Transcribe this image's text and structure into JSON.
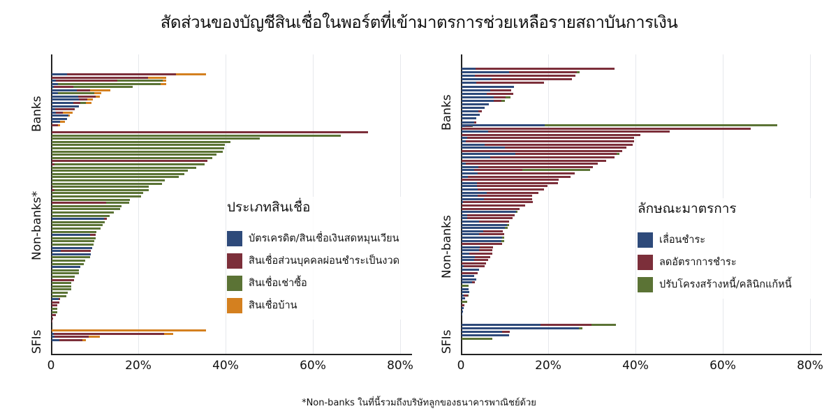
{
  "title": "สัดส่วนของบัญชีสินเชื่อในพอร์ตที่เข้ามาตรการช่วยเหลือรายสถาบันการเงิน",
  "footnote": "*Non-banks ในที่นี้รวมถึงบริษัทลูกของธนาคารพาณิชย์ด้วย",
  "colors": {
    "blue": "#2e4a7a",
    "red": "#7c2f3a",
    "green": "#5b7335",
    "orange": "#d4801f"
  },
  "chart_data": [
    {
      "type": "bar",
      "orientation": "horizontal-stacked",
      "title": "ประเภทสินเชื่อ",
      "legend": {
        "title": "ประเภทสินเชื่อ",
        "position": "inside-right",
        "entries": [
          {
            "label": "บัตรเครดิต/สินเชื่อเงินสดหมุนเวียน",
            "color": "#2e4a7a"
          },
          {
            "label": "สินเชื่อส่วนบุคคลผ่อนชำระเป็นงวด",
            "color": "#7c2f3a"
          },
          {
            "label": "สินเชื่อเช่าซื้อ",
            "color": "#5b7335"
          },
          {
            "label": "สินเชื่อบ้าน",
            "color": "#d4801f"
          }
        ]
      },
      "xlabel": "",
      "ylabel": "",
      "xlim": [
        0,
        82
      ],
      "xticks": [
        "0",
        "20%",
        "40%",
        "60%",
        "80%"
      ],
      "xtick_values": [
        0,
        20,
        40,
        60,
        80
      ],
      "grid": true,
      "groups": [
        {
          "label": "Banks",
          "bars": [
            [
              3.5,
              25,
              0,
              6.8
            ],
            [
              0,
              22,
              0,
              4.2
            ],
            [
              1,
              14,
              10.5,
              0.7
            ],
            [
              1.5,
              0,
              23.5,
              1.3
            ],
            [
              0.5,
              4.5,
              13.6,
              0
            ],
            [
              5.8,
              3,
              0,
              4.7
            ],
            [
              1.5,
              0,
              8.3,
              1.6
            ],
            [
              6.1,
              4,
              0,
              0.9
            ],
            [
              6.2,
              2,
              0,
              1.3
            ],
            [
              5,
              1.5,
              1.3,
              1.3
            ],
            [
              6.2,
              0,
              0,
              0
            ],
            [
              0.8,
              4.5,
              0,
              0
            ],
            [
              1,
              1.5,
              0,
              2.3
            ],
            [
              3.8,
              0,
              0,
              0.4
            ],
            [
              3.5,
              0,
              0,
              0
            ],
            [
              1.9,
              0,
              0,
              1.2
            ],
            [
              0,
              1.5,
              0,
              0.4
            ]
          ]
        },
        {
          "label": "Non-banks*",
          "bars": [
            [
              0,
              72.4,
              0,
              0
            ],
            [
              0,
              0,
              66.3,
              0
            ],
            [
              0,
              0,
              47.6,
              0
            ],
            [
              0,
              0,
              41,
              0
            ],
            [
              0,
              0,
              39.6,
              0
            ],
            [
              0,
              0,
              39.5,
              0
            ],
            [
              0,
              0,
              39.2,
              0
            ],
            [
              0,
              0,
              37.7,
              0
            ],
            [
              0,
              0,
              36.8,
              0
            ],
            [
              0,
              35.6,
              0,
              0
            ],
            [
              0,
              0.6,
              34.5,
              0
            ],
            [
              0,
              0,
              33.1,
              0
            ],
            [
              0,
              0,
              31.2,
              0
            ],
            [
              0,
              0,
              30.4,
              0
            ],
            [
              0,
              0,
              29.1,
              0
            ],
            [
              0,
              0,
              25.9,
              0
            ],
            [
              0,
              0,
              25.2,
              0
            ],
            [
              0,
              0.1,
              22.1,
              0
            ],
            [
              0,
              0.6,
              21.6,
              0
            ],
            [
              0,
              0,
              21,
              0
            ],
            [
              0,
              0,
              20.5,
              0
            ],
            [
              0,
              0,
              17.9,
              0
            ],
            [
              0,
              12.5,
              5.3,
              0
            ],
            [
              0,
              0,
              16,
              0
            ],
            [
              0,
              0,
              15.6,
              0
            ],
            [
              0,
              0,
              14.2,
              0
            ],
            [
              0,
              0,
              13.2,
              0
            ],
            [
              12,
              0.6,
              0,
              0
            ],
            [
              0,
              0,
              12.1,
              0
            ],
            [
              0,
              0,
              11.6,
              0
            ],
            [
              0,
              0,
              11.2,
              0
            ],
            [
              0,
              0,
              10.2,
              0
            ],
            [
              8.8,
              1.3,
              0,
              0
            ],
            [
              0,
              0,
              10,
              0
            ],
            [
              0,
              0,
              9.8,
              0
            ],
            [
              0,
              0,
              9.6,
              0
            ],
            [
              9.2,
              0,
              0,
              0
            ],
            [
              2.1,
              6.9,
              0,
              0
            ],
            [
              8.9,
              0,
              0,
              0
            ],
            [
              0,
              0,
              8.8,
              0
            ],
            [
              0,
              0,
              7.7,
              0
            ],
            [
              0,
              0,
              7.4,
              0
            ],
            [
              6.5,
              0,
              0,
              0
            ],
            [
              0,
              0,
              6.3,
              0
            ],
            [
              0,
              0,
              6.2,
              0
            ],
            [
              0,
              0,
              5.3,
              0
            ],
            [
              0,
              5.1,
              0,
              0
            ],
            [
              0,
              0,
              4.5,
              0
            ],
            [
              0,
              0,
              4.5,
              0
            ],
            [
              0,
              0,
              4.5,
              0
            ],
            [
              0,
              0,
              3.7,
              0
            ],
            [
              0,
              0,
              3.3,
              0
            ],
            [
              1.6,
              0.3,
              0,
              0
            ],
            [
              0,
              1.8,
              0,
              0
            ],
            [
              0,
              1.2,
              0,
              0
            ],
            [
              0,
              0,
              1.3,
              0
            ],
            [
              0,
              0,
              1.3,
              0
            ],
            [
              0,
              0.9,
              0,
              0
            ],
            [
              0,
              0.3,
              0,
              0
            ],
            [
              0,
              0.1,
              0,
              0
            ]
          ]
        },
        {
          "label": "SFIs",
          "bars": [
            [
              0,
              0,
              0,
              35.4
            ],
            [
              0.5,
              25.2,
              0,
              2.2
            ],
            [
              0.6,
              7.8,
              0,
              2.7
            ],
            [
              1.8,
              5.2,
              0,
              0.9
            ]
          ]
        }
      ]
    },
    {
      "type": "bar",
      "orientation": "horizontal-stacked",
      "title": "ลักษณะมาตรการ",
      "legend": {
        "title": "ลักษณะมาตรการ",
        "position": "inside-right",
        "entries": [
          {
            "label": "เลื่อนชำระ",
            "color": "#2e4a7a"
          },
          {
            "label": "ลดอัตราการชำระ",
            "color": "#7c2f3a"
          },
          {
            "label": "ปรับโครงสร้างหนี้/คลินิกแก้หนี้",
            "color": "#5b7335"
          }
        ]
      },
      "xlabel": "",
      "ylabel": "",
      "xlim": [
        0,
        82
      ],
      "xticks": [
        "0",
        "20%",
        "40%",
        "60%",
        "80%"
      ],
      "xtick_values": [
        0,
        20,
        40,
        60,
        80
      ],
      "grid": true,
      "groups": [
        {
          "label": "Banks",
          "bars": [
            [
              3.2,
              31.8,
              0
            ],
            [
              10.8,
              15.6,
              0.6
            ],
            [
              3,
              23,
              0
            ],
            [
              6.8,
              18.5,
              0
            ],
            [
              3.3,
              15.6,
              0
            ],
            [
              12,
              0,
              0
            ],
            [
              6.5,
              4.9,
              0
            ],
            [
              5.7,
              6.1,
              0
            ],
            [
              7.4,
              2.7,
              1.1
            ],
            [
              7.3,
              1.8,
              0.8
            ],
            [
              6.2,
              0,
              0
            ],
            [
              5.2,
              0,
              0
            ],
            [
              3.9,
              0.8,
              0
            ],
            [
              4.1,
              0,
              0
            ],
            [
              3.4,
              0,
              0
            ],
            [
              2.9,
              0.4,
              0
            ],
            [
              0.8,
              1.4,
              0.3
            ]
          ]
        },
        {
          "label": "Non-banks",
          "bars": [
            [
              19,
              0,
              53.3
            ],
            [
              0,
              66.3,
              0
            ],
            [
              6,
              41.6,
              0
            ],
            [
              0,
              41,
              0
            ],
            [
              1.2,
              38.3,
              0
            ],
            [
              1,
              38.5,
              0
            ],
            [
              5.3,
              33.9,
              0
            ],
            [
              9.9,
              27.9,
              0
            ],
            [
              0,
              36.8,
              0
            ],
            [
              12.3,
              23.2,
              0.7
            ],
            [
              6.5,
              28.6,
              0
            ],
            [
              0,
              33.1,
              0
            ],
            [
              1,
              30.2,
              0
            ],
            [
              3.9,
              26.2,
              0
            ],
            [
              2.9,
              11,
              15.5
            ],
            [
              3.6,
              22.3,
              0
            ],
            [
              1.5,
              23.5,
              0
            ],
            [
              0,
              22.2,
              0
            ],
            [
              3.5,
              18.6,
              0
            ],
            [
              3.5,
              16.1,
              0
            ],
            [
              3.6,
              15.2,
              0
            ],
            [
              5.7,
              11.9,
              0
            ],
            [
              3.6,
              12.5,
              0
            ],
            [
              5.1,
              11,
              0
            ],
            [
              0.3,
              16,
              0
            ],
            [
              0,
              14.5,
              0
            ],
            [
              0,
              13.2,
              0
            ],
            [
              12.4,
              0,
              0.4
            ],
            [
              1.3,
              10.9,
              0
            ],
            [
              1.2,
              10.5,
              0
            ],
            [
              4,
              6.9,
              0
            ],
            [
              10.4,
              0,
              0.4
            ],
            [
              9.9,
              0,
              0.6
            ],
            [
              5,
              4.5,
              0
            ],
            [
              4,
              5.8,
              0
            ],
            [
              9.3,
              0,
              0.4
            ],
            [
              9.1,
              0,
              0.6
            ],
            [
              0,
              9.2,
              0
            ],
            [
              4.1,
              3.1,
              0
            ],
            [
              4,
              3,
              0
            ],
            [
              1.8,
              5.3,
              0
            ],
            [
              3,
              3.5,
              0
            ],
            [
              2.8,
              3.2,
              0
            ],
            [
              0,
              5.6,
              0
            ],
            [
              0.4,
              4.9,
              0
            ],
            [
              4,
              0,
              0
            ],
            [
              0,
              3.7,
              0
            ],
            [
              2.9,
              0,
              0
            ],
            [
              3.3,
              0,
              0
            ],
            [
              2.4,
              0.6,
              0
            ],
            [
              0,
              0,
              1.6
            ],
            [
              1.6,
              0,
              0
            ],
            [
              1.7,
              0,
              0
            ],
            [
              0.4,
              1,
              0.2
            ],
            [
              0.8,
              0,
              0
            ],
            [
              0,
              0,
              1.2
            ],
            [
              0,
              0.7,
              0
            ],
            [
              0.5,
              0,
              0
            ],
            [
              0.3,
              0,
              0
            ],
            [
              0.2,
              0,
              0
            ]
          ]
        },
        {
          "label": "SFIs",
          "bars": [
            [
              18,
              11.8,
              5.6
            ],
            [
              26.8,
              0,
              0.8
            ],
            [
              9.2,
              1.9,
              0
            ],
            [
              10.9,
              0,
              0
            ],
            [
              0,
              0,
              7
            ]
          ]
        }
      ]
    }
  ]
}
